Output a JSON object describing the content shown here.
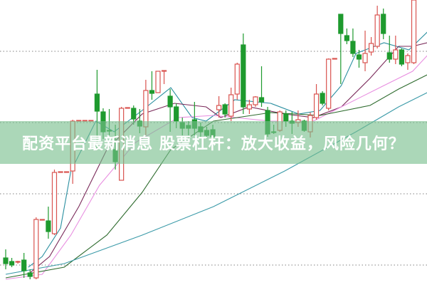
{
  "banner": {
    "title": "配资平台最新消息 股票杠杆：放大收益，风险几何？"
  },
  "chart_data": {
    "type": "candlestick",
    "title": "",
    "xlabel": "",
    "ylabel": "",
    "grid": true,
    "grid_style": "dotted",
    "grid_levels": [
      82,
      57,
      32,
      7
    ],
    "ylim": [
      0,
      100
    ],
    "up_color": "#d9534f",
    "up_style": "hollow",
    "down_color": "#1e9a2e",
    "down_style": "filled",
    "candles": [
      [
        9.5,
        7.5,
        12.5,
        5.5
      ],
      [
        8.25,
        7,
        9.5,
        6.25
      ],
      [
        8,
        8.25,
        8.5,
        7.5
      ],
      [
        8.75,
        5,
        11.25,
        2.5
      ],
      [
        4.25,
        3,
        5.5,
        2
      ],
      [
        2.5,
        23,
        23.75,
        2
      ],
      [
        22.75,
        23,
        23,
        22.75
      ],
      [
        22.5,
        18.75,
        27.5,
        16.25
      ],
      [
        18,
        39.5,
        40.5,
        17.5
      ],
      [
        39.5,
        39.75,
        39.75,
        39.5
      ],
      [
        39.5,
        39.75,
        39.75,
        39.5
      ],
      [
        40,
        57.5,
        58,
        35.5
      ],
      [
        57.5,
        57.75,
        57.75,
        57.5
      ],
      [
        57.5,
        57.75,
        57.75,
        57.5
      ],
      [
        57.5,
        57.75,
        57.75,
        57.5
      ],
      [
        67,
        61,
        75.5,
        47.5
      ],
      [
        60.75,
        53.75,
        62,
        51.25
      ],
      [
        54.25,
        54,
        61.75,
        52.5
      ],
      [
        47.5,
        43.25,
        56.25,
        40.5
      ],
      [
        36.75,
        62,
        62.5,
        36.75
      ],
      [
        62,
        62.25,
        62.25,
        62
      ],
      [
        62,
        58.25,
        63,
        56.25
      ],
      [
        57.5,
        55.75,
        61.75,
        53.25
      ],
      [
        55.5,
        68.25,
        72,
        52.5
      ],
      [
        68.25,
        67.25,
        75,
        65
      ],
      [
        67.5,
        75,
        75,
        67.5
      ],
      [
        75,
        75.25,
        75.25,
        70.5
      ],
      [
        66.25,
        62.5,
        68.75,
        53.75
      ],
      [
        62.5,
        57.5,
        63.75,
        55
      ],
      [
        57,
        55,
        58.75,
        52.5
      ],
      [
        56,
        55,
        57.5,
        52.5
      ],
      [
        58,
        55,
        64.25,
        52.5
      ],
      [
        55.5,
        53.75,
        57,
        52
      ],
      [
        54.25,
        52.5,
        55.5,
        51.25
      ],
      [
        54.5,
        52,
        56.25,
        50
      ],
      [
        61.5,
        63,
        66.25,
        58.75
      ],
      [
        63.25,
        60,
        63.75,
        58.75
      ],
      [
        59.25,
        66.75,
        69.25,
        57.5
      ],
      [
        67,
        77.5,
        78,
        65
      ],
      [
        84.25,
        62.5,
        88.25,
        60
      ],
      [
        61.75,
        63.25,
        65,
        60
      ],
      [
        63.25,
        66,
        66.25,
        62.5
      ],
      [
        65.75,
        64.25,
        76.75,
        62.5
      ],
      [
        61.25,
        53,
        62.5,
        52
      ],
      [
        53.75,
        53.5,
        56.25,
        53
      ],
      [
        54.25,
        60.75,
        61.25,
        53.75
      ],
      [
        60,
        57.5,
        61.25,
        55.5
      ],
      [
        57.5,
        56.75,
        60.75,
        53
      ],
      [
        57,
        58,
        61.25,
        55.5
      ],
      [
        57.5,
        54.25,
        58,
        53.75
      ],
      [
        53.75,
        59.5,
        60.5,
        51.75
      ],
      [
        58.75,
        67,
        70.5,
        58
      ],
      [
        67.25,
        63.75,
        68,
        63
      ],
      [
        62,
        79.25,
        79.5,
        61.25
      ],
      [
        79.25,
        79.5,
        79.5,
        79.25
      ],
      [
        95,
        88.25,
        95,
        70.5
      ],
      [
        87.5,
        85.75,
        90,
        84.5
      ],
      [
        85.5,
        81.25,
        90,
        80
      ],
      [
        80.75,
        79.25,
        82.5,
        76.25
      ],
      [
        78,
        81.25,
        89.25,
        75
      ],
      [
        81.75,
        84.75,
        87,
        80.5
      ],
      [
        83.75,
        94.75,
        98,
        83
      ],
      [
        95,
        88.25,
        97,
        86.25
      ],
      [
        81.5,
        79.25,
        87.5,
        78
      ],
      [
        79.25,
        82.5,
        87.5,
        77.5
      ],
      [
        82.5,
        77.5,
        83,
        76.75
      ],
      [
        78,
        80.5,
        81.25,
        75.5
      ],
      [
        78,
        100,
        100,
        77.5
      ]
    ],
    "moving_averages": [
      {
        "color": "#2a8fa0",
        "points": [
          [
            3.7,
            6.25
          ],
          [
            6,
            10
          ],
          [
            9,
            20
          ],
          [
            10.7,
            40
          ],
          [
            14.8,
            57.5
          ],
          [
            17.8,
            53.75
          ],
          [
            22.4,
            61.25
          ],
          [
            27.1,
            69.25
          ],
          [
            30.6,
            58.75
          ],
          [
            32.9,
            57.5
          ],
          [
            37.6,
            65
          ],
          [
            43.5,
            63.75
          ],
          [
            48.1,
            60
          ],
          [
            51.6,
            61.25
          ],
          [
            55.1,
            70
          ],
          [
            57.5,
            81.25
          ],
          [
            62.1,
            85
          ],
          [
            66.2,
            82.5
          ],
          [
            69.2,
            88.75
          ]
        ]
      },
      {
        "color": "#7a2a5a",
        "points": [
          [
            3.7,
            3.75
          ],
          [
            7.2,
            10
          ],
          [
            12,
            27.5
          ],
          [
            16.6,
            47.5
          ],
          [
            22.4,
            60
          ],
          [
            27.7,
            63.75
          ],
          [
            32.9,
            62.5
          ],
          [
            35.3,
            58.75
          ],
          [
            40,
            62.5
          ],
          [
            45.8,
            60
          ],
          [
            50.5,
            58.75
          ],
          [
            55.1,
            62.5
          ],
          [
            59.8,
            72.5
          ],
          [
            64.5,
            83.75
          ],
          [
            66.8,
            83.75
          ],
          [
            69.2,
            85
          ]
        ]
      },
      {
        "color": "#e88ee0",
        "points": [
          [
            0,
            2
          ],
          [
            6,
            3.75
          ],
          [
            10.7,
            17.5
          ],
          [
            15.4,
            35
          ],
          [
            21.3,
            50
          ],
          [
            28.3,
            58.75
          ],
          [
            34.1,
            59.5
          ],
          [
            43.5,
            57.5
          ],
          [
            50.5,
            57.5
          ],
          [
            55.1,
            62.5
          ],
          [
            62.1,
            70
          ],
          [
            66.8,
            75
          ],
          [
            69.2,
            80.5
          ]
        ]
      },
      {
        "color": "#2e6b2e",
        "points": [
          [
            0,
            2.5
          ],
          [
            9.6,
            6.25
          ],
          [
            16.6,
            17.5
          ],
          [
            22.4,
            32.5
          ],
          [
            27.1,
            47.5
          ],
          [
            34.1,
            57.5
          ],
          [
            43.5,
            60.5
          ],
          [
            51.6,
            59.5
          ],
          [
            59.8,
            63
          ],
          [
            64.5,
            68.75
          ],
          [
            69.2,
            73.75
          ]
        ]
      },
      {
        "color": "#3a9aa8",
        "points": [
          [
            0,
            3.75
          ],
          [
            9.6,
            7.5
          ],
          [
            22.4,
            17.5
          ],
          [
            34.1,
            27.5
          ],
          [
            45.8,
            40
          ],
          [
            57.5,
            53.75
          ],
          [
            64.5,
            62.5
          ],
          [
            69.2,
            67.5
          ]
        ]
      }
    ]
  }
}
